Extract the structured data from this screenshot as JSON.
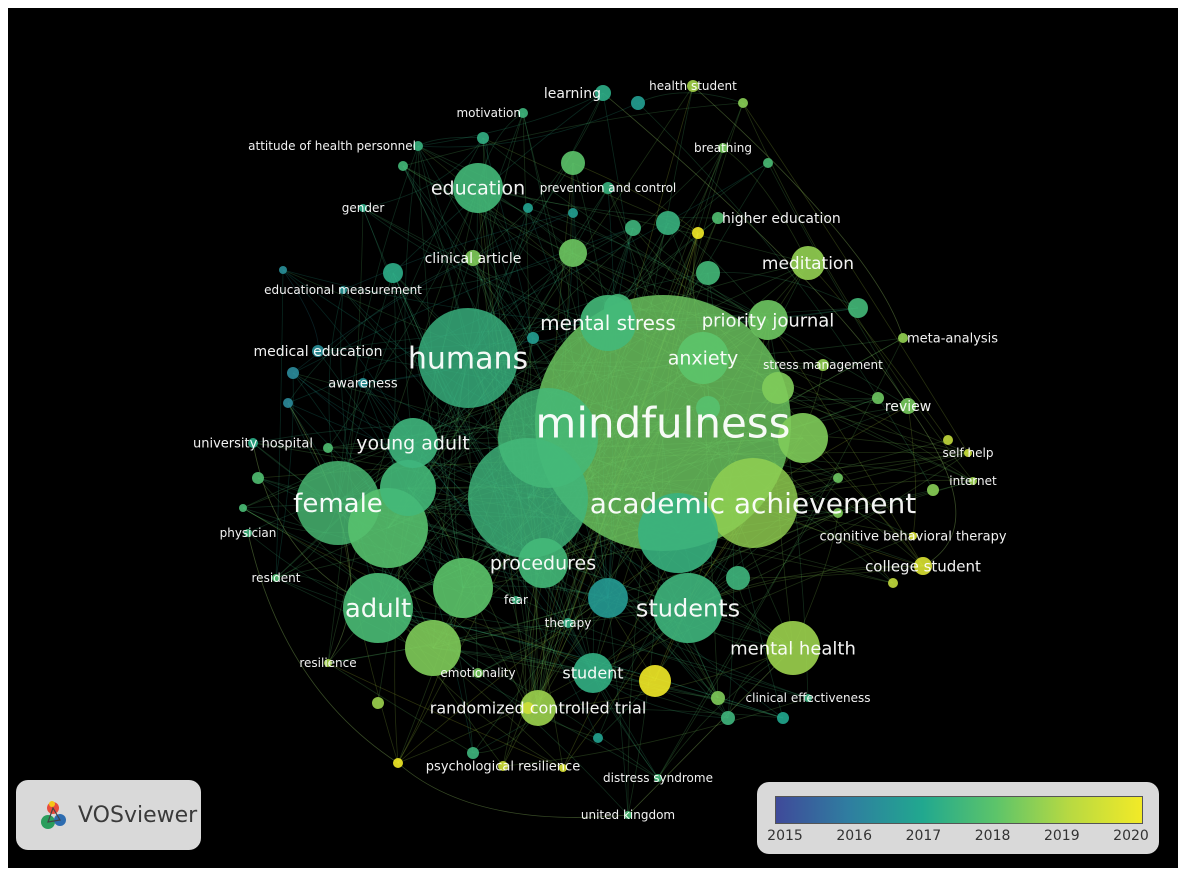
{
  "app": {
    "logo_text": "VOSviewer",
    "logo_icon": "vosviewer-logo-icon"
  },
  "legend": {
    "ticks": [
      "2015",
      "2016",
      "2017",
      "2018",
      "2019",
      "2020"
    ],
    "colors": [
      "#3f4a9a",
      "#2f7ea0",
      "#21a88f",
      "#5cc46a",
      "#b7d942",
      "#f2ea27"
    ]
  },
  "network": {
    "background": "#000000",
    "label_color": "#ffffff",
    "nodes": [
      {
        "id": "mindfulness",
        "label": "mindfulness",
        "year": 2018.2,
        "weight": 10,
        "label_size": 42
      },
      {
        "id": "academic-achievement",
        "label": "academic achievement",
        "year": 2018.6,
        "weight": 6,
        "label_size": 28
      },
      {
        "id": "humans",
        "label": "humans",
        "year": 2017.4,
        "weight": 6,
        "label_size": 30
      },
      {
        "id": "female",
        "label": "female",
        "year": 2017.7,
        "weight": 5,
        "label_size": 26
      },
      {
        "id": "adult",
        "label": "adult",
        "year": 2017.7,
        "weight": 5,
        "label_size": 26
      },
      {
        "id": "students",
        "label": "students",
        "year": 2017.5,
        "weight": 5,
        "label_size": 24
      },
      {
        "id": "mental-stress",
        "label": "mental stress",
        "year": 2017.6,
        "weight": 4,
        "label_size": 20
      },
      {
        "id": "young-adult",
        "label": "young adult",
        "year": 2017.5,
        "weight": 4,
        "label_size": 19
      },
      {
        "id": "procedures",
        "label": "procedures",
        "year": 2017.6,
        "weight": 4,
        "label_size": 19
      },
      {
        "id": "education",
        "label": "education",
        "year": 2017.6,
        "weight": 4,
        "label_size": 19
      },
      {
        "id": "anxiety",
        "label": "anxiety",
        "year": 2018.0,
        "weight": 4,
        "label_size": 19
      },
      {
        "id": "priority-journal",
        "label": "priority journal",
        "year": 2018.2,
        "weight": 3,
        "label_size": 18
      },
      {
        "id": "meditation",
        "label": "meditation",
        "year": 2018.6,
        "weight": 3,
        "label_size": 17
      },
      {
        "id": "mental-health",
        "label": "mental health",
        "year": 2018.7,
        "weight": 4,
        "label_size": 18
      },
      {
        "id": "randomized-controlled-trial",
        "label": "randomized controlled trial",
        "year": 2018.7,
        "weight": 3,
        "label_size": 16
      },
      {
        "id": "student",
        "label": "student",
        "year": 2017.3,
        "weight": 3,
        "label_size": 16
      },
      {
        "id": "college-student",
        "label": "college student",
        "year": 2019.6,
        "weight": 1,
        "label_size": 15
      },
      {
        "id": "review",
        "label": "review",
        "year": 2018.3,
        "weight": 1,
        "label_size": 14
      },
      {
        "id": "higher-education",
        "label": "higher education",
        "year": 2017.8,
        "weight": 1,
        "label_size": 14
      },
      {
        "id": "learning",
        "label": "learning",
        "year": 2017.2,
        "weight": 1,
        "label_size": 14
      },
      {
        "id": "health-student",
        "label": "health student",
        "year": 2018.8,
        "weight": 1,
        "label_size": 12
      },
      {
        "id": "motivation",
        "label": "motivation",
        "year": 2017.5,
        "weight": 1,
        "label_size": 12
      },
      {
        "id": "attitude-of-health-personnel",
        "label": "attitude of health personnel",
        "year": 2017.4,
        "weight": 1,
        "label_size": 12
      },
      {
        "id": "breathing",
        "label": "breathing",
        "year": 2018.3,
        "weight": 1,
        "label_size": 12
      },
      {
        "id": "prevention-and-control",
        "label": "prevention and control",
        "year": 2017.4,
        "weight": 1,
        "label_size": 12
      },
      {
        "id": "gender",
        "label": "gender",
        "year": 2017.2,
        "weight": 1,
        "label_size": 12
      },
      {
        "id": "clinical-article",
        "label": "clinical article",
        "year": 2018.4,
        "weight": 1,
        "label_size": 14
      },
      {
        "id": "educational-measurement",
        "label": "educational measurement",
        "year": 2016.6,
        "weight": 1,
        "label_size": 12
      },
      {
        "id": "medical-education",
        "label": "medical education",
        "year": 2016.4,
        "weight": 1,
        "label_size": 14
      },
      {
        "id": "awareness",
        "label": "awareness",
        "year": 2016.5,
        "weight": 1,
        "label_size": 13
      },
      {
        "id": "meta-analysis",
        "label": "meta-analysis",
        "year": 2018.6,
        "weight": 1,
        "label_size": 13
      },
      {
        "id": "stress-management",
        "label": "stress management",
        "year": 2018.6,
        "weight": 1,
        "label_size": 12
      },
      {
        "id": "university-hospital",
        "label": "university hospital",
        "year": 2017.2,
        "weight": 1,
        "label_size": 13
      },
      {
        "id": "self-help",
        "label": "self help",
        "year": 2019.3,
        "weight": 1,
        "label_size": 12
      },
      {
        "id": "internet",
        "label": "internet",
        "year": 2018.7,
        "weight": 1,
        "label_size": 12
      },
      {
        "id": "physician",
        "label": "physician",
        "year": 2017.5,
        "weight": 1,
        "label_size": 12
      },
      {
        "id": "cognitive-behavioral-therapy",
        "label": "cognitive behavioral therapy",
        "year": 2019.6,
        "weight": 1,
        "label_size": 13
      },
      {
        "id": "resident",
        "label": "resident",
        "year": 2017.8,
        "weight": 1,
        "label_size": 12
      },
      {
        "id": "fear",
        "label": "fear",
        "year": 2017.4,
        "weight": 1,
        "label_size": 12
      },
      {
        "id": "therapy",
        "label": "therapy",
        "year": 2017.3,
        "weight": 1,
        "label_size": 12
      },
      {
        "id": "resilience",
        "label": "resilience",
        "year": 2018.8,
        "weight": 1,
        "label_size": 12
      },
      {
        "id": "emotionality",
        "label": "emotionality",
        "year": 2018.3,
        "weight": 1,
        "label_size": 12
      },
      {
        "id": "clinical-effectiveness",
        "label": "clinical effectiveness",
        "year": 2017.4,
        "weight": 1,
        "label_size": 12
      },
      {
        "id": "psychological-resilience",
        "label": "psychological resilience",
        "year": 2019.4,
        "weight": 1,
        "label_size": 13
      },
      {
        "id": "distress-syndrome",
        "label": "distress syndrome",
        "year": 2017.6,
        "weight": 1,
        "label_size": 12
      },
      {
        "id": "united-kingdom",
        "label": "united kingdom",
        "year": 2017.7,
        "weight": 1,
        "label_size": 12
      },
      {
        "id": "yellow-node",
        "label": "",
        "year": 2020,
        "weight": 2,
        "label_size": 0
      }
    ]
  }
}
